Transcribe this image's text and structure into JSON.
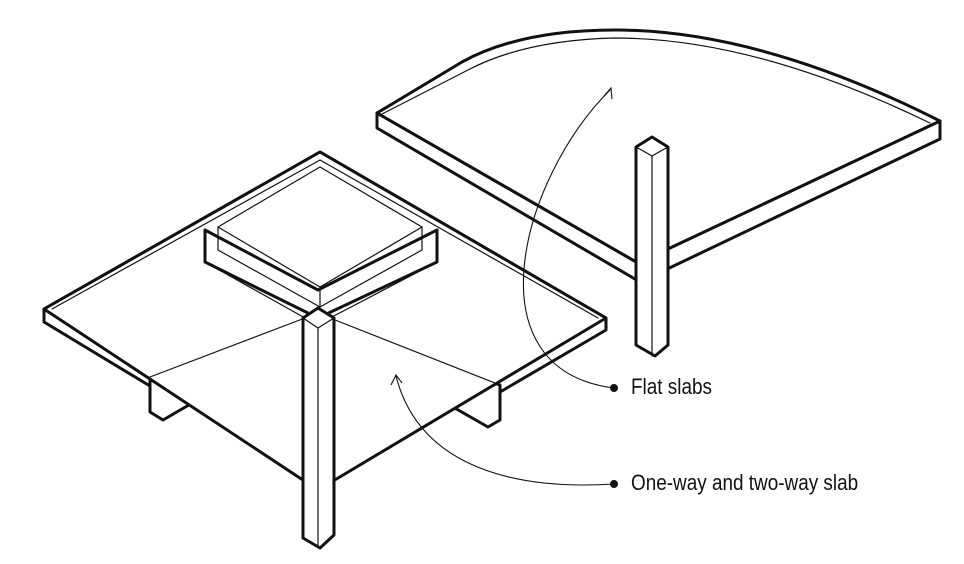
{
  "labels": {
    "flat_slabs": "Flat slabs",
    "one_two_way": "One-way and two-way slab"
  },
  "colors": {
    "line": "#111111",
    "background": "#ffffff"
  }
}
